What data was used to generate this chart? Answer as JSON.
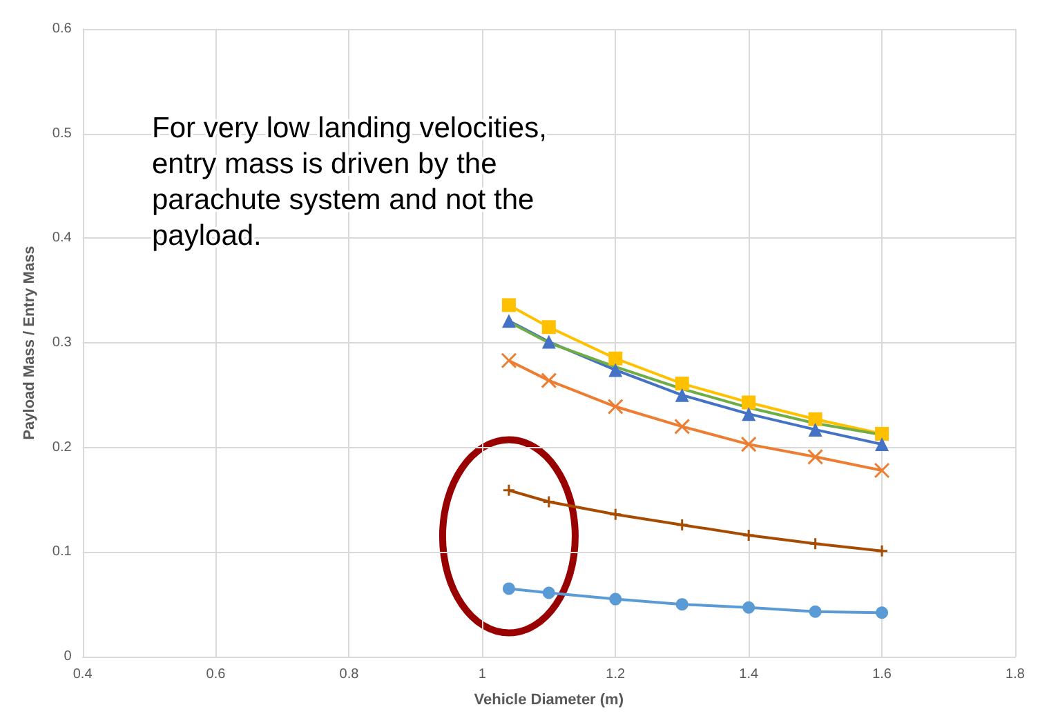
{
  "chart_data": {
    "type": "line",
    "xlabel": "Vehicle Diameter (m)",
    "ylabel": "Payload Mass / Entry Mass",
    "x": [
      1.04,
      1.1,
      1.2,
      1.3,
      1.4,
      1.5,
      1.6
    ],
    "series": [
      {
        "color": "#ffc000",
        "marker": "square",
        "values": [
          0.336,
          0.315,
          0.285,
          0.261,
          0.243,
          0.227,
          0.213
        ]
      },
      {
        "color": "#4472c4",
        "marker": "triangle",
        "values": [
          0.321,
          0.301,
          0.274,
          0.25,
          0.232,
          0.217,
          0.203
        ]
      },
      {
        "color": "#70ad47",
        "marker": "none",
        "values": [
          0.32,
          0.3,
          0.277,
          0.256,
          0.238,
          0.223,
          0.212
        ]
      },
      {
        "color": "#ed7d31",
        "marker": "cross",
        "values": [
          0.283,
          0.264,
          0.239,
          0.22,
          0.203,
          0.191,
          0.178
        ]
      },
      {
        "color": "#a64b00",
        "marker": "plus",
        "values": [
          0.159,
          0.148,
          0.136,
          0.126,
          0.116,
          0.108,
          0.101
        ]
      },
      {
        "color": "#5b9bd5",
        "marker": "circle",
        "values": [
          0.065,
          0.061,
          0.055,
          0.05,
          0.047,
          0.043,
          0.042
        ]
      }
    ],
    "xlim": [
      0.4,
      1.8
    ],
    "xticks": [
      0.4,
      0.6,
      0.8,
      1,
      1.2,
      1.4,
      1.6,
      1.8
    ],
    "ylim": [
      0,
      0.6
    ],
    "yticks": [
      0,
      0.1,
      0.2,
      0.3,
      0.4,
      0.5,
      0.6
    ],
    "grid": true,
    "annotations": [
      "For very low landing velocities, entry mass is driven by the parachute system and not the payload."
    ]
  }
}
